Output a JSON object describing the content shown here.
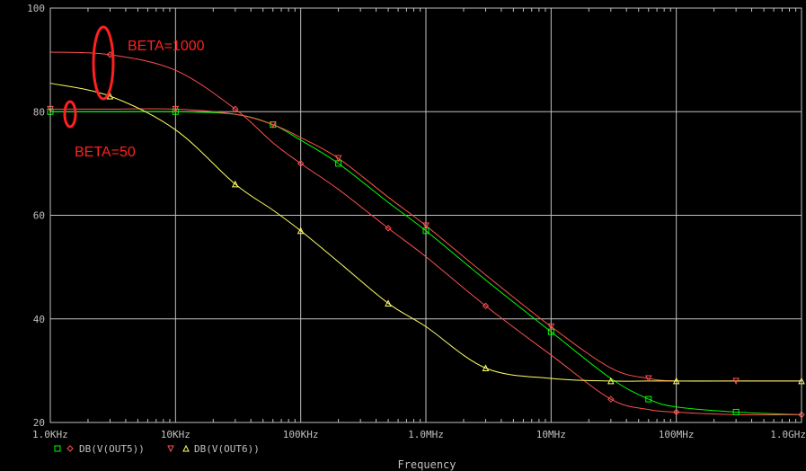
{
  "chart_data": {
    "type": "line",
    "x_scale": "log",
    "xlim": [
      1000,
      1000000000
    ],
    "ylim": [
      20,
      100
    ],
    "grid": true,
    "xlabel": "Frequency",
    "ylabel": "",
    "y_ticks": [
      "100",
      "80",
      "60",
      "40",
      "20"
    ],
    "x_ticks": [
      "1.0KHz",
      "10KHz",
      "100KHz",
      "1.0MHz",
      "10MHz",
      "100MHz",
      "1.0GHz"
    ],
    "legend": [
      {
        "label": "DB(V(OUT5))",
        "markers": [
          "square",
          "diamond"
        ]
      },
      {
        "label": "DB(V(OUT6))",
        "markers": [
          "triangle-down",
          "triangle-up"
        ]
      }
    ],
    "series": [
      {
        "color": "#00ff00",
        "marker": "square",
        "x": [
          1000,
          3000,
          10000,
          30000,
          60000,
          100000,
          200000,
          500000,
          1000000,
          3000000,
          10000000,
          30000000,
          60000000,
          100000000,
          300000000,
          1000000000
        ],
        "y": [
          80,
          80,
          80,
          79.5,
          77.5,
          74.5,
          70,
          62.5,
          57,
          47.5,
          37.5,
          28.5,
          24.5,
          23,
          22,
          21.5
        ]
      },
      {
        "color": "#ff5050",
        "marker": "diamond",
        "x": [
          1000,
          3000,
          10000,
          30000,
          60000,
          100000,
          200000,
          500000,
          1000000,
          3000000,
          10000000,
          30000000,
          60000000,
          100000000,
          300000000,
          1000000000
        ],
        "y": [
          91.5,
          91,
          88,
          80.5,
          74,
          70,
          65,
          57.5,
          52,
          42.5,
          33,
          24.5,
          22.5,
          22,
          21.5,
          21.5
        ]
      },
      {
        "color": "#ff5050",
        "marker": "triangle-down",
        "x": [
          1000,
          3000,
          10000,
          30000,
          60000,
          100000,
          200000,
          500000,
          1000000,
          3000000,
          10000000,
          30000000,
          60000000,
          100000000,
          300000000,
          1000000000
        ],
        "y": [
          80.5,
          80.5,
          80.5,
          79.5,
          77.5,
          75,
          71,
          63.5,
          58,
          48.5,
          38.5,
          30.5,
          28.5,
          28,
          28,
          28
        ]
      },
      {
        "color": "#ffff66",
        "marker": "triangle-up",
        "x": [
          1000,
          3000,
          10000,
          30000,
          60000,
          100000,
          200000,
          500000,
          1000000,
          3000000,
          10000000,
          30000000,
          60000000,
          100000000,
          300000000,
          1000000000
        ],
        "y": [
          85.5,
          83,
          76.5,
          66,
          61,
          57,
          51,
          43,
          38.5,
          30.5,
          28.5,
          28,
          28,
          28,
          28,
          28
        ]
      }
    ],
    "annotations": [
      {
        "text": "BETA=1000",
        "color": "#ff2020"
      },
      {
        "text": "BETA=50",
        "color": "#ff2020"
      }
    ]
  }
}
